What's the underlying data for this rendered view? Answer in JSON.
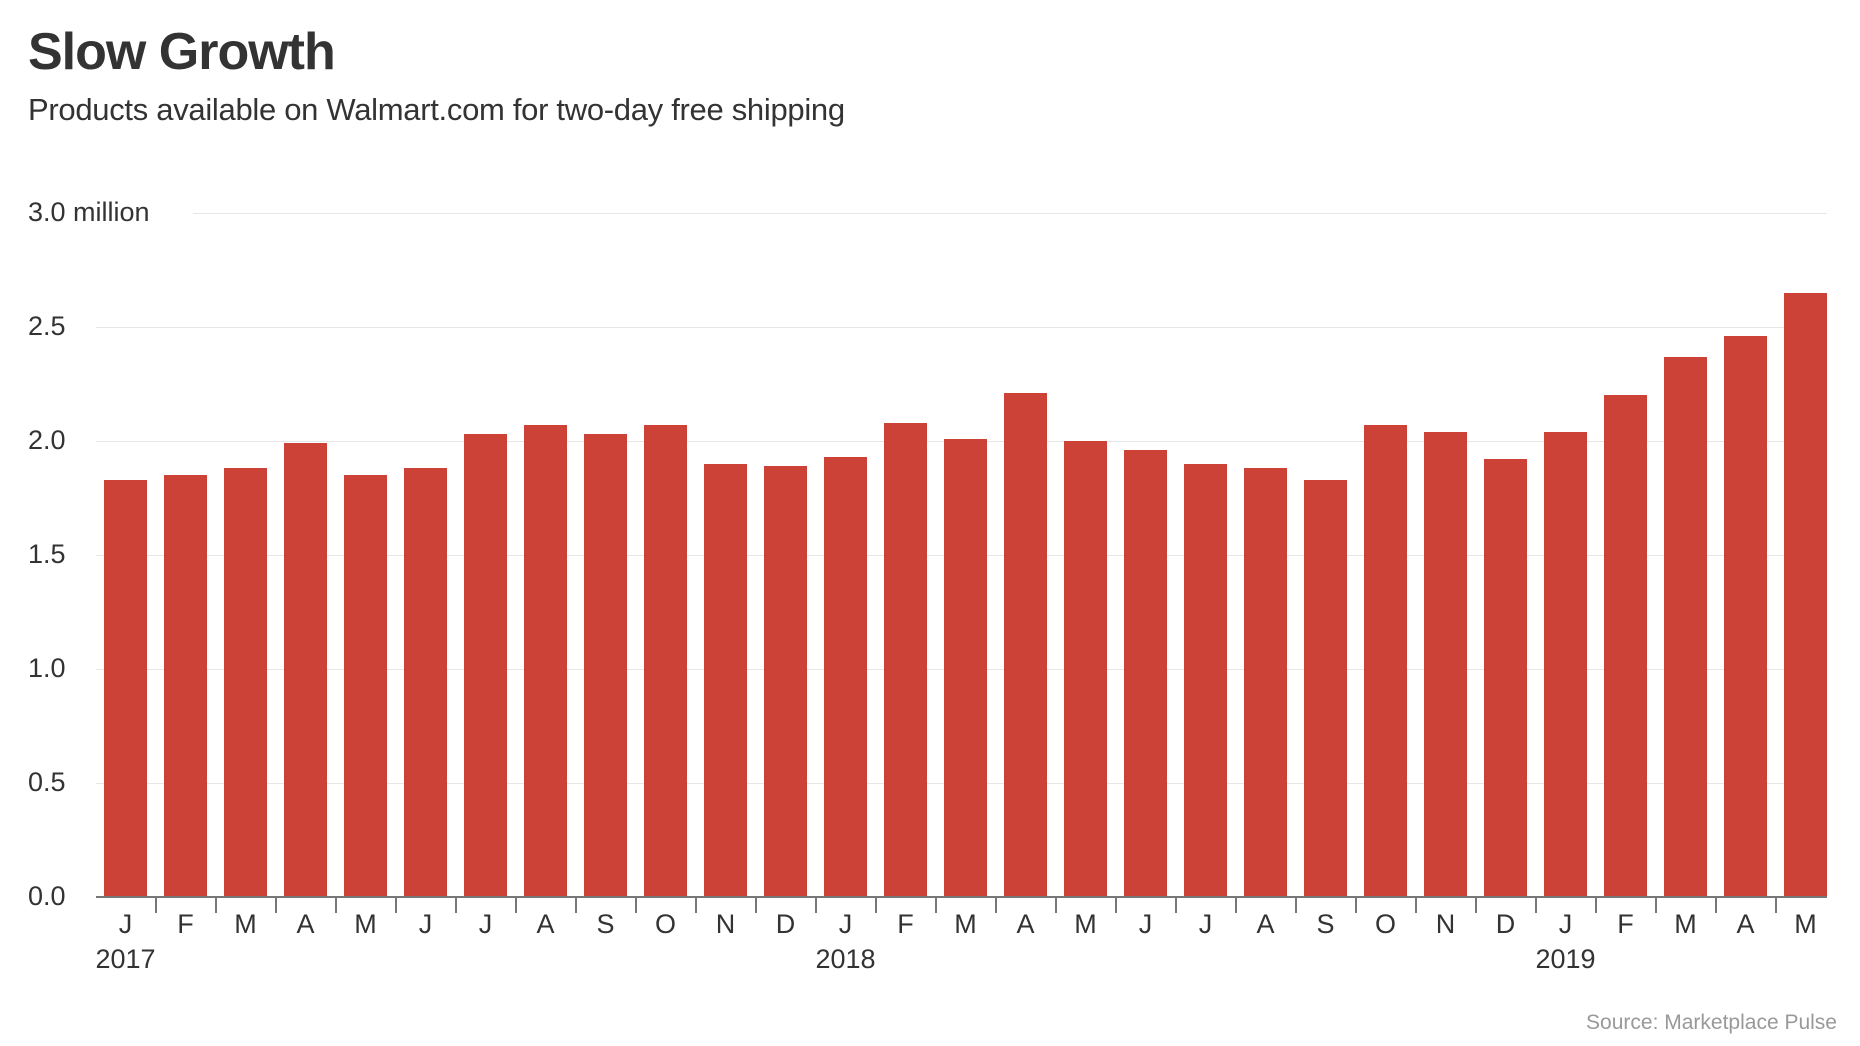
{
  "header": {
    "title": "Slow Growth",
    "subtitle": "Products available on Walmart.com for two-day free shipping"
  },
  "footer": {
    "source": "Source: Marketplace Pulse"
  },
  "colors": {
    "bar": "#cc4236",
    "grid": "#e6e6e6",
    "axis": "#777777",
    "text": "#333333",
    "source": "#999999"
  },
  "y_axis": {
    "ticks": [
      {
        "value": 0.0,
        "label": "0.0"
      },
      {
        "value": 0.5,
        "label": "0.5"
      },
      {
        "value": 1.0,
        "label": "1.0"
      },
      {
        "value": 1.5,
        "label": "1.5"
      },
      {
        "value": 2.0,
        "label": "2.0"
      },
      {
        "value": 2.5,
        "label": "2.5"
      },
      {
        "value": 3.0,
        "label": "3.0 million"
      }
    ]
  },
  "chart_data": {
    "type": "bar",
    "title": "Slow Growth",
    "subtitle": "Products available on Walmart.com for two-day free shipping",
    "xlabel": "",
    "ylabel": "",
    "unit": "million products",
    "ylim": [
      0,
      3.0
    ],
    "grid": true,
    "legend": null,
    "categories": [
      "J",
      "F",
      "M",
      "A",
      "M",
      "J",
      "J",
      "A",
      "S",
      "O",
      "N",
      "D",
      "J",
      "F",
      "M",
      "A",
      "M",
      "J",
      "J",
      "A",
      "S",
      "O",
      "N",
      "D",
      "J",
      "F",
      "M",
      "A",
      "M"
    ],
    "full_categories": [
      "Jan 2017",
      "Feb 2017",
      "Mar 2017",
      "Apr 2017",
      "May 2017",
      "Jun 2017",
      "Jul 2017",
      "Aug 2017",
      "Sep 2017",
      "Oct 2017",
      "Nov 2017",
      "Dec 2017",
      "Jan 2018",
      "Feb 2018",
      "Mar 2018",
      "Apr 2018",
      "May 2018",
      "Jun 2018",
      "Jul 2018",
      "Aug 2018",
      "Sep 2018",
      "Oct 2018",
      "Nov 2018",
      "Dec 2018",
      "Jan 2019",
      "Feb 2019",
      "Mar 2019",
      "Apr 2019",
      "May 2019"
    ],
    "year_labels": [
      {
        "label": "2017",
        "index": 0
      },
      {
        "label": "2018",
        "index": 12
      },
      {
        "label": "2019",
        "index": 24
      }
    ],
    "values": [
      1.83,
      1.85,
      1.88,
      1.99,
      1.85,
      1.88,
      2.03,
      2.07,
      2.03,
      2.07,
      1.9,
      1.89,
      1.93,
      2.08,
      2.01,
      2.21,
      2.0,
      1.96,
      1.9,
      1.88,
      1.83,
      2.07,
      2.04,
      1.92,
      2.04,
      2.2,
      2.37,
      2.46,
      2.65
    ],
    "source": "Source: Marketplace Pulse"
  }
}
